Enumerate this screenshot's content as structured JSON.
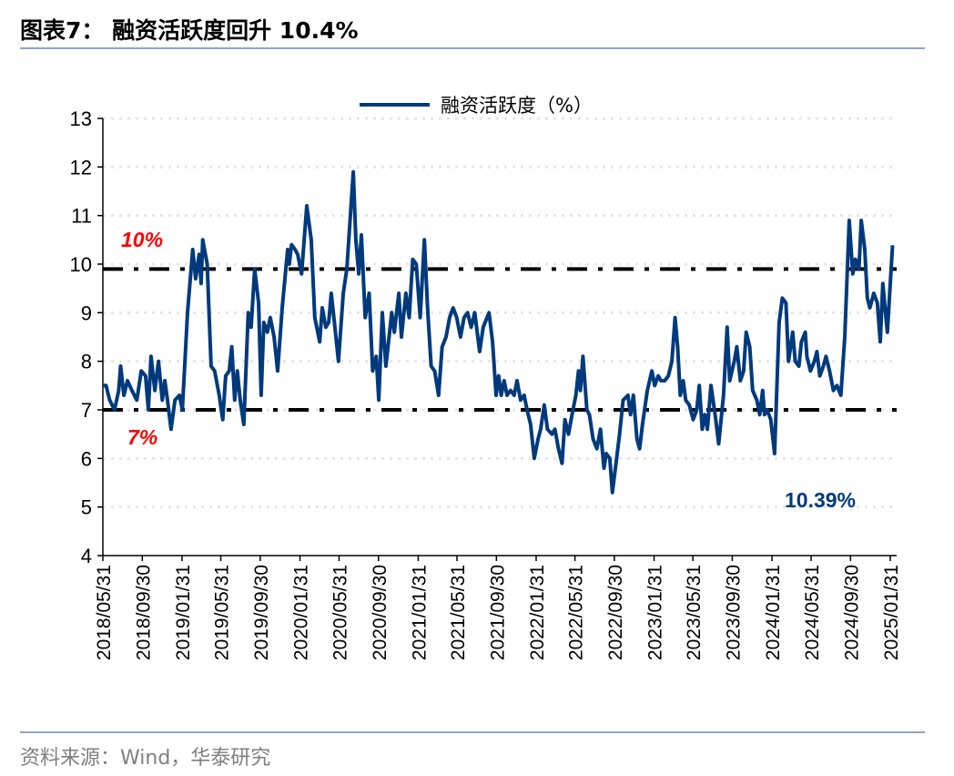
{
  "header": {
    "title": "图表7：  融资活跃度回升 10.4%"
  },
  "footer": {
    "source": "资料来源：Wind，华泰研究"
  },
  "colors": {
    "series": "#003a7d",
    "threshold_label": "#ff0000",
    "reference_line": "#000000",
    "rule": "#8da4c9"
  },
  "chart_data": {
    "type": "line",
    "title": "",
    "xlabel": "",
    "ylabel": "",
    "ylim": [
      4,
      13
    ],
    "yticks": [
      "4",
      "5",
      "6",
      "7",
      "8",
      "9",
      "10",
      "11",
      "12",
      "13"
    ],
    "xticks": [
      "2018/05/31",
      "2018/09/30",
      "2019/01/31",
      "2019/05/31",
      "2019/09/30",
      "2020/01/31",
      "2020/05/31",
      "2020/09/30",
      "2021/01/31",
      "2021/05/31",
      "2021/09/30",
      "2022/01/31",
      "2022/05/31",
      "2022/09/30",
      "2023/01/31",
      "2023/05/31",
      "2023/09/30",
      "2024/01/31",
      "2024/05/31",
      "2024/09/30",
      "2025/01/31"
    ],
    "grid": "horizontal-dotted",
    "legend": "top-center",
    "reference_lines": [
      {
        "value": 9.9,
        "label": "10%"
      },
      {
        "value": 7.0,
        "label": "7%"
      }
    ],
    "annotation": "10.39%",
    "series": [
      {
        "name": "融资活跃度（%）",
        "points": [
          [
            "2018-05-31",
            7.5
          ],
          [
            "2018-06-10",
            7.5
          ],
          [
            "2018-06-21",
            7.2
          ],
          [
            "2018-07-06",
            7.0
          ],
          [
            "2018-07-19",
            7.4
          ],
          [
            "2018-07-25",
            7.9
          ],
          [
            "2018-08-04",
            7.3
          ],
          [
            "2018-08-15",
            7.6
          ],
          [
            "2018-08-29",
            7.4
          ],
          [
            "2018-09-13",
            7.2
          ],
          [
            "2018-09-27",
            7.8
          ],
          [
            "2018-10-10",
            7.7
          ],
          [
            "2018-10-19",
            7.0
          ],
          [
            "2018-10-27",
            8.1
          ],
          [
            "2018-11-08",
            7.4
          ],
          [
            "2018-11-19",
            8.0
          ],
          [
            "2018-12-01",
            7.2
          ],
          [
            "2018-12-09",
            7.6
          ],
          [
            "2018-12-17",
            7.2
          ],
          [
            "2018-12-28",
            6.6
          ],
          [
            "2019-01-09",
            7.2
          ],
          [
            "2019-01-23",
            7.3
          ],
          [
            "2019-02-01",
            7.0
          ],
          [
            "2019-02-17",
            9.0
          ],
          [
            "2019-03-05",
            10.3
          ],
          [
            "2019-03-14",
            9.7
          ],
          [
            "2019-03-25",
            10.2
          ],
          [
            "2019-03-31",
            9.6
          ],
          [
            "2019-04-05",
            10.5
          ],
          [
            "2019-04-19",
            10.0
          ],
          [
            "2019-05-01",
            7.9
          ],
          [
            "2019-05-12",
            7.8
          ],
          [
            "2019-05-26",
            7.3
          ],
          [
            "2019-06-06",
            6.8
          ],
          [
            "2019-06-15",
            7.7
          ],
          [
            "2019-06-26",
            7.8
          ],
          [
            "2019-07-04",
            8.3
          ],
          [
            "2019-07-13",
            7.2
          ],
          [
            "2019-07-21",
            7.8
          ],
          [
            "2019-07-30",
            7.2
          ],
          [
            "2019-08-10",
            6.7
          ],
          [
            "2019-08-24",
            9.0
          ],
          [
            "2019-09-02",
            8.7
          ],
          [
            "2019-09-13",
            9.9
          ],
          [
            "2019-09-25",
            9.2
          ],
          [
            "2019-10-03",
            7.3
          ],
          [
            "2019-10-11",
            8.8
          ],
          [
            "2019-10-22",
            8.6
          ],
          [
            "2019-10-31",
            8.9
          ],
          [
            "2019-11-12",
            8.5
          ],
          [
            "2019-11-23",
            7.8
          ],
          [
            "2019-12-07",
            9.1
          ],
          [
            "2019-12-24",
            10.3
          ],
          [
            "2019-12-29",
            10.0
          ],
          [
            "2020-01-05",
            10.4
          ],
          [
            "2020-01-16",
            10.3
          ],
          [
            "2020-01-24",
            10.2
          ],
          [
            "2020-02-05",
            9.8
          ],
          [
            "2020-02-21",
            11.2
          ],
          [
            "2020-03-06",
            10.5
          ],
          [
            "2020-03-17",
            8.9
          ],
          [
            "2020-04-01",
            8.4
          ],
          [
            "2020-04-09",
            9.1
          ],
          [
            "2020-04-20",
            8.7
          ],
          [
            "2020-04-29",
            8.8
          ],
          [
            "2020-05-07",
            9.4
          ],
          [
            "2020-05-18",
            8.7
          ],
          [
            "2020-05-29",
            8.0
          ],
          [
            "2020-06-13",
            9.4
          ],
          [
            "2020-06-24",
            9.9
          ],
          [
            "2020-07-14",
            11.9
          ],
          [
            "2020-07-22",
            10.5
          ],
          [
            "2020-07-31",
            9.8
          ],
          [
            "2020-08-08",
            10.6
          ],
          [
            "2020-08-20",
            8.9
          ],
          [
            "2020-09-01",
            9.4
          ],
          [
            "2020-09-12",
            7.8
          ],
          [
            "2020-09-23",
            8.1
          ],
          [
            "2020-10-01",
            7.2
          ],
          [
            "2020-10-12",
            9.0
          ],
          [
            "2020-10-23",
            7.9
          ],
          [
            "2020-11-10",
            9.0
          ],
          [
            "2020-11-18",
            8.6
          ],
          [
            "2020-12-02",
            9.4
          ],
          [
            "2020-12-10",
            8.5
          ],
          [
            "2020-12-24",
            9.4
          ],
          [
            "2021-01-03",
            8.9
          ],
          [
            "2021-01-14",
            10.1
          ],
          [
            "2021-01-25",
            10.0
          ],
          [
            "2021-02-06",
            8.9
          ],
          [
            "2021-02-19",
            10.5
          ],
          [
            "2021-03-01",
            9.1
          ],
          [
            "2021-03-12",
            7.9
          ],
          [
            "2021-03-23",
            7.8
          ],
          [
            "2021-04-04",
            7.3
          ],
          [
            "2021-04-15",
            8.3
          ],
          [
            "2021-04-27",
            8.5
          ],
          [
            "2021-05-08",
            8.9
          ],
          [
            "2021-05-19",
            9.1
          ],
          [
            "2021-05-30",
            8.9
          ],
          [
            "2021-06-11",
            8.5
          ],
          [
            "2021-06-22",
            8.9
          ],
          [
            "2021-07-03",
            9.0
          ],
          [
            "2021-07-14",
            8.7
          ],
          [
            "2021-07-25",
            9.0
          ],
          [
            "2021-08-09",
            8.2
          ],
          [
            "2021-08-20",
            8.7
          ],
          [
            "2021-09-07",
            9.0
          ],
          [
            "2021-09-18",
            8.4
          ],
          [
            "2021-09-29",
            7.3
          ],
          [
            "2021-10-07",
            7.7
          ],
          [
            "2021-10-15",
            7.3
          ],
          [
            "2021-10-24",
            7.6
          ],
          [
            "2021-11-02",
            7.3
          ],
          [
            "2021-11-13",
            7.4
          ],
          [
            "2021-11-24",
            7.3
          ],
          [
            "2021-12-03",
            7.6
          ],
          [
            "2021-12-14",
            7.2
          ],
          [
            "2021-12-25",
            7.3
          ],
          [
            "2022-01-03",
            7.0
          ],
          [
            "2022-01-14",
            6.7
          ],
          [
            "2022-01-25",
            6.0
          ],
          [
            "2022-02-06",
            6.4
          ],
          [
            "2022-02-14",
            6.6
          ],
          [
            "2022-02-25",
            7.1
          ],
          [
            "2022-03-07",
            6.6
          ],
          [
            "2022-03-21",
            6.5
          ],
          [
            "2022-03-30",
            6.6
          ],
          [
            "2022-04-10",
            6.2
          ],
          [
            "2022-04-21",
            5.9
          ],
          [
            "2022-04-30",
            6.8
          ],
          [
            "2022-05-11",
            6.5
          ],
          [
            "2022-05-22",
            6.9
          ],
          [
            "2022-06-03",
            7.3
          ],
          [
            "2022-06-11",
            7.8
          ],
          [
            "2022-06-17",
            7.4
          ],
          [
            "2022-06-25",
            8.1
          ],
          [
            "2022-07-07",
            7.0
          ],
          [
            "2022-07-15",
            6.9
          ],
          [
            "2022-07-26",
            6.4
          ],
          [
            "2022-08-07",
            6.2
          ],
          [
            "2022-08-18",
            6.6
          ],
          [
            "2022-08-29",
            5.8
          ],
          [
            "2022-09-05",
            6.1
          ],
          [
            "2022-09-16",
            6.0
          ],
          [
            "2022-09-24",
            5.3
          ],
          [
            "2022-10-05",
            5.9
          ],
          [
            "2022-10-16",
            6.5
          ],
          [
            "2022-10-27",
            7.2
          ],
          [
            "2022-11-11",
            7.3
          ],
          [
            "2022-11-19",
            6.9
          ],
          [
            "2022-11-28",
            7.3
          ],
          [
            "2022-12-09",
            6.4
          ],
          [
            "2022-12-17",
            6.2
          ],
          [
            "2022-12-26",
            6.7
          ],
          [
            "2023-01-10",
            7.4
          ],
          [
            "2023-01-24",
            7.8
          ],
          [
            "2023-02-02",
            7.5
          ],
          [
            "2023-02-13",
            7.7
          ],
          [
            "2023-02-21",
            7.6
          ],
          [
            "2023-03-05",
            7.6
          ],
          [
            "2023-03-16",
            7.7
          ],
          [
            "2023-03-27",
            8.0
          ],
          [
            "2023-04-06",
            8.9
          ],
          [
            "2023-04-14",
            8.3
          ],
          [
            "2023-04-22",
            7.3
          ],
          [
            "2023-05-01",
            7.6
          ],
          [
            "2023-05-09",
            7.2
          ],
          [
            "2023-05-20",
            7.1
          ],
          [
            "2023-06-01",
            6.8
          ],
          [
            "2023-06-12",
            7.0
          ],
          [
            "2023-06-20",
            7.5
          ],
          [
            "2023-06-29",
            6.6
          ],
          [
            "2023-07-07",
            6.9
          ],
          [
            "2023-07-15",
            6.6
          ],
          [
            "2023-07-26",
            7.5
          ],
          [
            "2023-08-08",
            6.9
          ],
          [
            "2023-08-19",
            6.3
          ],
          [
            "2023-09-03",
            7.3
          ],
          [
            "2023-09-14",
            8.7
          ],
          [
            "2023-09-22",
            7.6
          ],
          [
            "2023-10-06",
            8.0
          ],
          [
            "2023-10-14",
            8.3
          ],
          [
            "2023-10-25",
            7.6
          ],
          [
            "2023-11-04",
            7.8
          ],
          [
            "2023-11-12",
            8.6
          ],
          [
            "2023-11-23",
            8.3
          ],
          [
            "2023-12-02",
            7.4
          ],
          [
            "2023-12-15",
            7.2
          ],
          [
            "2023-12-24",
            6.9
          ],
          [
            "2024-01-02",
            7.4
          ],
          [
            "2024-01-08",
            6.9
          ],
          [
            "2024-01-16",
            7.0
          ],
          [
            "2024-01-27",
            6.8
          ],
          [
            "2024-02-08",
            6.1
          ],
          [
            "2024-02-22",
            8.8
          ],
          [
            "2024-03-03",
            9.3
          ],
          [
            "2024-03-14",
            9.2
          ],
          [
            "2024-03-22",
            8.0
          ],
          [
            "2024-04-04",
            8.6
          ],
          [
            "2024-04-12",
            8.0
          ],
          [
            "2024-04-23",
            7.9
          ],
          [
            "2024-05-01",
            8.4
          ],
          [
            "2024-05-13",
            8.6
          ],
          [
            "2024-05-18",
            8.1
          ],
          [
            "2024-05-29",
            7.8
          ],
          [
            "2024-06-10",
            8.0
          ],
          [
            "2024-06-18",
            8.2
          ],
          [
            "2024-06-27",
            7.7
          ],
          [
            "2024-07-08",
            7.9
          ],
          [
            "2024-07-16",
            8.1
          ],
          [
            "2024-07-27",
            7.8
          ],
          [
            "2024-08-08",
            7.4
          ],
          [
            "2024-08-19",
            7.5
          ],
          [
            "2024-08-31",
            7.3
          ],
          [
            "2024-09-12",
            8.5
          ],
          [
            "2024-09-26",
            10.9
          ],
          [
            "2024-10-07",
            9.8
          ],
          [
            "2024-10-15",
            10.1
          ],
          [
            "2024-10-26",
            9.9
          ],
          [
            "2024-11-02",
            10.9
          ],
          [
            "2024-11-13",
            10.3
          ],
          [
            "2024-11-21",
            9.3
          ],
          [
            "2024-11-29",
            9.1
          ],
          [
            "2024-12-11",
            9.4
          ],
          [
            "2024-12-22",
            9.2
          ],
          [
            "2024-12-31",
            8.4
          ],
          [
            "2025-01-08",
            9.6
          ],
          [
            "2025-01-22",
            8.6
          ],
          [
            "2025-02-07",
            10.39
          ]
        ]
      }
    ]
  }
}
